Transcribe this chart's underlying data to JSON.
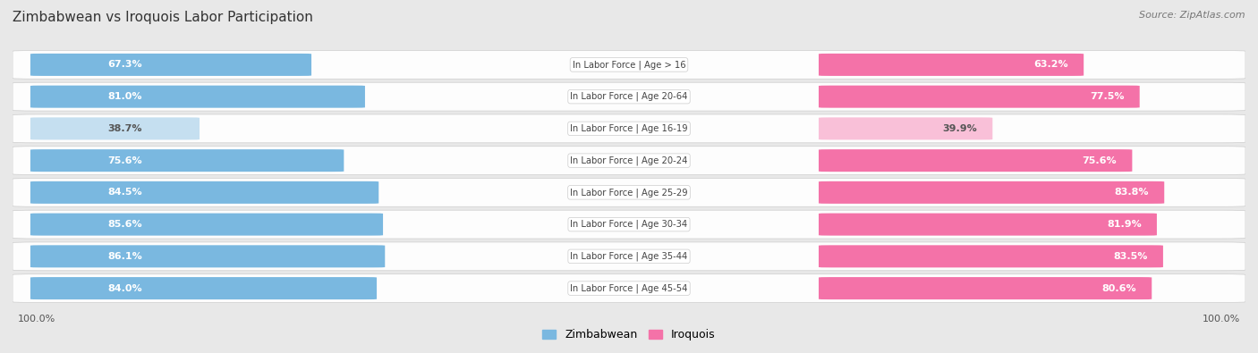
{
  "title": "Zimbabwean vs Iroquois Labor Participation",
  "source": "Source: ZipAtlas.com",
  "categories": [
    "In Labor Force | Age > 16",
    "In Labor Force | Age 20-64",
    "In Labor Force | Age 16-19",
    "In Labor Force | Age 20-24",
    "In Labor Force | Age 25-29",
    "In Labor Force | Age 30-34",
    "In Labor Force | Age 35-44",
    "In Labor Force | Age 45-54"
  ],
  "zimbabwean": [
    67.3,
    81.0,
    38.7,
    75.6,
    84.5,
    85.6,
    86.1,
    84.0
  ],
  "iroquois": [
    63.2,
    77.5,
    39.9,
    75.6,
    83.8,
    81.9,
    83.5,
    80.6
  ],
  "zim_color_strong": "#7ab8e0",
  "zim_color_light": "#c5dff0",
  "iro_color_strong": "#f472a8",
  "iro_color_light": "#f9c0d8",
  "bg_color": "#e8e8e8",
  "row_bg": "#e0e0e8",
  "max_val": 100.0,
  "legend_zim_color": "#7ab8e0",
  "legend_iro_color": "#f472a8",
  "threshold": 50.0
}
